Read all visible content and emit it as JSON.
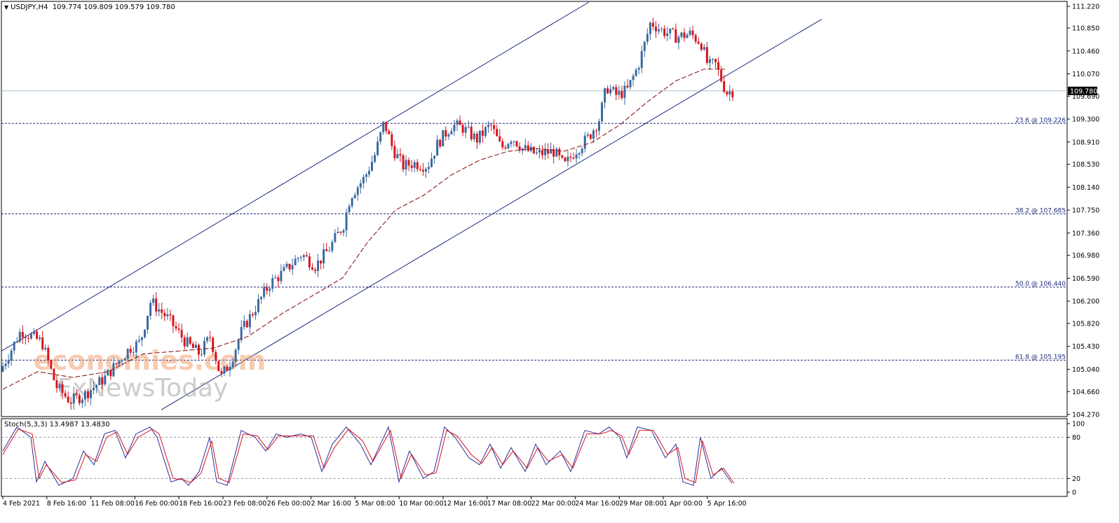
{
  "header": {
    "symbol": "USDJPY,H4",
    "ohlc": "109.774 109.809 109.579 109.780"
  },
  "indicator": {
    "label": "Stoch(5,3,3) 13.4987 13.4830"
  },
  "watermark": {
    "line1": "economies.com",
    "line2": "FxNewsToday"
  },
  "colors": {
    "bull": "#3b6aa0",
    "bear": "#d8141c",
    "channel": "#1c2a7a",
    "fib": "#1c2a7a",
    "ma": "#8b1a1a",
    "price_line": "#a8c4d6",
    "stoch_main": "#2b2f9a",
    "stoch_signal": "#d8141c"
  },
  "chart_data": [
    {
      "type": "candlestick",
      "title": "USDJPY,H4",
      "ylim": [
        104.27,
        111.22
      ],
      "price_axis_ticks": [
        "111.220",
        "110.850",
        "110.460",
        "110.070",
        "109.690",
        "109.300",
        "108.910",
        "108.530",
        "108.140",
        "107.750",
        "107.360",
        "106.980",
        "106.590",
        "106.200",
        "105.820",
        "105.430",
        "105.040",
        "104.660",
        "104.270"
      ],
      "current_price": "109.780",
      "time_axis_labels": [
        "4 Feb 2021",
        "8 Feb 16:00",
        "11 Feb 08:00",
        "16 Feb 00:00",
        "18 Feb 16:00",
        "23 Feb 08:00",
        "26 Feb 00:00",
        "2 Mar 16:00",
        "5 Mar 08:00",
        "10 Mar 00:00",
        "12 Mar 16:00",
        "17 Mar 08:00",
        "22 Mar 00:00",
        "24 Mar 16:00",
        "29 Mar 08:00",
        "1 Apr 00:00",
        "5 Apr 16:00"
      ],
      "fibonacci_levels": [
        {
          "label": "23.6 @ 109.226",
          "value": 109.226
        },
        {
          "label": "38.2 @ 107.685",
          "value": 107.685
        },
        {
          "label": "50.0 @ 106.440",
          "value": 106.44
        },
        {
          "label": "61.8 @ 105.195",
          "value": 105.195
        }
      ],
      "price_path": [
        [
          0,
          105.0
        ],
        [
          30,
          105.7
        ],
        [
          60,
          105.5
        ],
        [
          80,
          104.75
        ],
        [
          100,
          104.5
        ],
        [
          120,
          104.6
        ],
        [
          150,
          104.9
        ],
        [
          185,
          105.4
        ],
        [
          200,
          105.5
        ],
        [
          215,
          106.2
        ],
        [
          240,
          105.9
        ],
        [
          265,
          105.5
        ],
        [
          285,
          105.3
        ],
        [
          300,
          105.6
        ],
        [
          315,
          104.9
        ],
        [
          330,
          105.2
        ],
        [
          345,
          105.7
        ],
        [
          370,
          106.2
        ],
        [
          385,
          106.5
        ],
        [
          405,
          106.7
        ],
        [
          430,
          107.0
        ],
        [
          450,
          106.8
        ],
        [
          470,
          107.1
        ],
        [
          490,
          107.5
        ],
        [
          500,
          108.0
        ],
        [
          520,
          108.3
        ],
        [
          535,
          108.7
        ],
        [
          548,
          109.25
        ],
        [
          560,
          108.8
        ],
        [
          575,
          108.5
        ],
        [
          590,
          108.55
        ],
        [
          610,
          108.5
        ],
        [
          625,
          108.9
        ],
        [
          645,
          109.2
        ],
        [
          660,
          109.15
        ],
        [
          680,
          108.95
        ],
        [
          700,
          109.2
        ],
        [
          715,
          108.8
        ],
        [
          730,
          109.0
        ],
        [
          745,
          108.8
        ],
        [
          765,
          108.7
        ],
        [
          790,
          108.75
        ],
        [
          805,
          108.5
        ],
        [
          820,
          108.75
        ],
        [
          840,
          109.0
        ],
        [
          855,
          109.3
        ],
        [
          865,
          109.85
        ],
        [
          880,
          109.7
        ],
        [
          895,
          109.8
        ],
        [
          910,
          110.2
        ],
        [
          920,
          110.6
        ],
        [
          928,
          110.95
        ],
        [
          945,
          110.8
        ],
        [
          965,
          110.7
        ],
        [
          985,
          110.75
        ],
        [
          1000,
          110.6
        ],
        [
          1010,
          110.2
        ],
        [
          1020,
          110.25
        ],
        [
          1028,
          110.0
        ],
        [
          1036,
          109.75
        ],
        [
          1044,
          109.78
        ]
      ],
      "moving_average_path": [
        [
          0,
          104.7
        ],
        [
          50,
          105.0
        ],
        [
          100,
          104.9
        ],
        [
          150,
          105.0
        ],
        [
          200,
          105.3
        ],
        [
          250,
          105.35
        ],
        [
          300,
          105.4
        ],
        [
          350,
          105.6
        ],
        [
          400,
          106.0
        ],
        [
          450,
          106.35
        ],
        [
          485,
          106.6
        ],
        [
          520,
          107.2
        ],
        [
          560,
          107.75
        ],
        [
          600,
          108.0
        ],
        [
          640,
          108.35
        ],
        [
          680,
          108.6
        ],
        [
          720,
          108.75
        ],
        [
          760,
          108.8
        ],
        [
          800,
          108.75
        ],
        [
          840,
          108.9
        ],
        [
          880,
          109.2
        ],
        [
          920,
          109.6
        ],
        [
          960,
          109.95
        ],
        [
          1000,
          110.15
        ],
        [
          1030,
          110.15
        ]
      ]
    },
    {
      "type": "line",
      "title": "Stoch(5,3,3)",
      "ylim": [
        0,
        100
      ],
      "y_ticks": [
        100,
        80,
        20,
        0
      ],
      "levels": [
        80,
        20
      ],
      "series": [
        {
          "values": [
            [
              0,
              60
            ],
            [
              20,
              95
            ],
            [
              40,
              80
            ],
            [
              48,
              15
            ],
            [
              60,
              45
            ],
            [
              80,
              10
            ],
            [
              100,
              20
            ],
            [
              115,
              60
            ],
            [
              130,
              40
            ],
            [
              145,
              85
            ],
            [
              160,
              90
            ],
            [
              175,
              50
            ],
            [
              190,
              85
            ],
            [
              210,
              95
            ],
            [
              220,
              80
            ],
            [
              240,
              15
            ],
            [
              255,
              20
            ],
            [
              265,
              10
            ],
            [
              280,
              30
            ],
            [
              295,
              80
            ],
            [
              305,
              15
            ],
            [
              320,
              10
            ],
            [
              340,
              90
            ],
            [
              360,
              80
            ],
            [
              375,
              60
            ],
            [
              390,
              85
            ],
            [
              405,
              80
            ],
            [
              425,
              85
            ],
            [
              440,
              80
            ],
            [
              455,
              30
            ],
            [
              470,
              70
            ],
            [
              490,
              95
            ],
            [
              510,
              70
            ],
            [
              525,
              40
            ],
            [
              550,
              95
            ],
            [
              565,
              15
            ],
            [
              580,
              60
            ],
            [
              600,
              20
            ],
            [
              615,
              30
            ],
            [
              630,
              95
            ],
            [
              645,
              80
            ],
            [
              665,
              50
            ],
            [
              680,
              40
            ],
            [
              695,
              70
            ],
            [
              710,
              35
            ],
            [
              725,
              65
            ],
            [
              745,
              30
            ],
            [
              760,
              70
            ],
            [
              775,
              40
            ],
            [
              795,
              60
            ],
            [
              810,
              30
            ],
            [
              830,
              90
            ],
            [
              850,
              85
            ],
            [
              865,
              95
            ],
            [
              880,
              80
            ],
            [
              890,
              50
            ],
            [
              905,
              95
            ],
            [
              925,
              90
            ],
            [
              945,
              50
            ],
            [
              960,
              70
            ],
            [
              970,
              15
            ],
            [
              985,
              10
            ],
            [
              995,
              80
            ],
            [
              1010,
              20
            ],
            [
              1025,
              35
            ],
            [
              1040,
              13
            ]
          ]
        },
        {
          "values": [
            [
              0,
              55
            ],
            [
              22,
              92
            ],
            [
              42,
              85
            ],
            [
              52,
              20
            ],
            [
              62,
              40
            ],
            [
              84,
              14
            ],
            [
              104,
              18
            ],
            [
              118,
              55
            ],
            [
              134,
              45
            ],
            [
              148,
              80
            ],
            [
              163,
              88
            ],
            [
              178,
              55
            ],
            [
              193,
              80
            ],
            [
              213,
              92
            ],
            [
              223,
              85
            ],
            [
              243,
              20
            ],
            [
              258,
              18
            ],
            [
              268,
              14
            ],
            [
              283,
              28
            ],
            [
              298,
              75
            ],
            [
              308,
              20
            ],
            [
              323,
              14
            ],
            [
              343,
              85
            ],
            [
              363,
              82
            ],
            [
              378,
              62
            ],
            [
              393,
              82
            ],
            [
              408,
              82
            ],
            [
              428,
              82
            ],
            [
              443,
              82
            ],
            [
              458,
              35
            ],
            [
              473,
              65
            ],
            [
              493,
              92
            ],
            [
              513,
              75
            ],
            [
              528,
              45
            ],
            [
              553,
              90
            ],
            [
              568,
              20
            ],
            [
              583,
              55
            ],
            [
              603,
              25
            ],
            [
              618,
              28
            ],
            [
              633,
              90
            ],
            [
              648,
              82
            ],
            [
              668,
              55
            ],
            [
              683,
              42
            ],
            [
              698,
              65
            ],
            [
              713,
              40
            ],
            [
              728,
              60
            ],
            [
              748,
              35
            ],
            [
              763,
              65
            ],
            [
              778,
              45
            ],
            [
              798,
              55
            ],
            [
              813,
              35
            ],
            [
              833,
              85
            ],
            [
              853,
              85
            ],
            [
              868,
              90
            ],
            [
              883,
              82
            ],
            [
              893,
              55
            ],
            [
              908,
              90
            ],
            [
              928,
              90
            ],
            [
              948,
              55
            ],
            [
              963,
              65
            ],
            [
              973,
              20
            ],
            [
              988,
              14
            ],
            [
              998,
              75
            ],
            [
              1013,
              25
            ],
            [
              1028,
              35
            ],
            [
              1043,
              13
            ]
          ]
        }
      ]
    }
  ]
}
